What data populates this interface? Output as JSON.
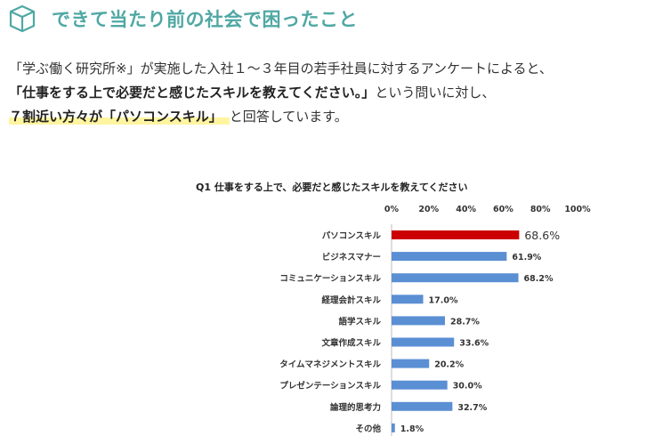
{
  "section": {
    "title": "できて当たり前の社会で困ったこと",
    "icon": "cube-outline-icon",
    "accent_color": "#4fa8a4"
  },
  "intro": {
    "line1": "「学ぶ働く研究所※」が実施した入社１～３年目の若手社員に対するアンケートによると、",
    "line2_bold": "「仕事をする上で必要だと感じたスキルを教えてください。」",
    "line2_rest": "という問いに対し、",
    "line3_highlight": "７割近い方々が「パソコンスキル」",
    "line3_rest": "と回答しています。",
    "highlight_color": "#fff5a0"
  },
  "chart_data": {
    "type": "bar",
    "orientation": "horizontal",
    "title": "Q1 仕事をする上で、必要だと感じたスキルを教えてください",
    "categories": [
      "パソコンスキル",
      "ビジネスマナー",
      "コミュニケーションスキル",
      "経理会計スキル",
      "語学スキル",
      "文章作成スキル",
      "タイムマネジメントスキル",
      "プレゼンテーションスキル",
      "論理的思考力",
      "その他"
    ],
    "values": [
      68.6,
      61.9,
      68.2,
      17.0,
      28.7,
      33.6,
      20.2,
      30.0,
      32.7,
      1.8
    ],
    "value_labels": [
      "68.6%",
      "61.9%",
      "68.2%",
      "17.0%",
      "28.7%",
      "33.6%",
      "20.2%",
      "30.0%",
      "32.7%",
      "1.8%"
    ],
    "xlim": [
      0,
      100
    ],
    "xticks": [
      "0%",
      "20%",
      "40%",
      "60%",
      "80%",
      "100%"
    ],
    "bar_color": "#5b8fd4",
    "highlight_bar_color": "#cc0000",
    "highlight_index": 0,
    "grid": false
  }
}
